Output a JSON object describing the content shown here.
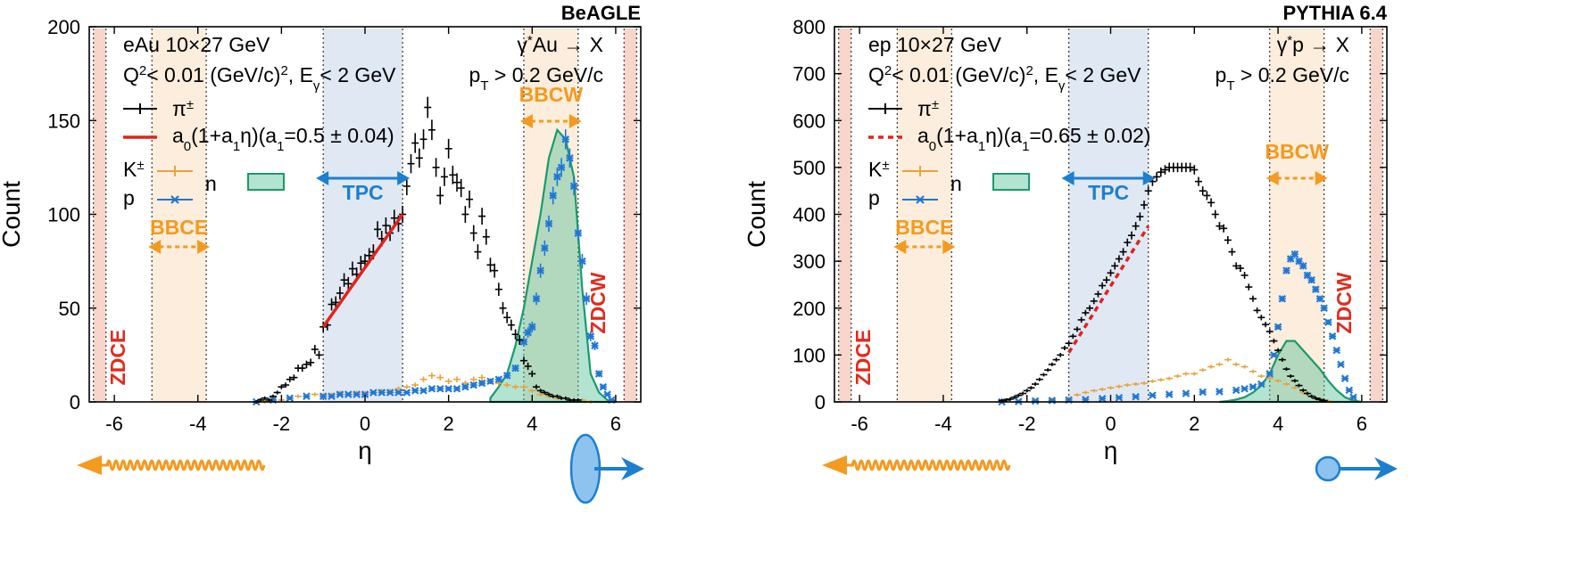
{
  "colors": {
    "pion": "#000000",
    "fit": "#e2231a",
    "kaon": "#e8a33a",
    "proton": "#1f77d4",
    "neutron_fill": "#56c29a",
    "neutron_line": "#1b9a6c",
    "tpc_band": "#dde5f3",
    "bbc_band": "#fdebd8",
    "zdc_band": "#f7d0c4",
    "orange": "#f39a1f",
    "blue": "#1c7fd0",
    "red": "#e12b1d"
  },
  "chart_data": [
    {
      "type": "scatter",
      "generator": "BeAGLE",
      "xlabel": "η",
      "ylabel": "Count",
      "xlim": [
        -6.6,
        6.6
      ],
      "ylim": [
        0,
        200
      ],
      "xticks": [
        "-6",
        "-4",
        "-2",
        "0",
        "2",
        "4",
        "6"
      ],
      "yticks": [
        "0",
        "50",
        "100",
        "150",
        "200"
      ],
      "annotations": {
        "system": "eAu 10×27 GeV",
        "q2": "Q²< 0.01 (GeV/c)², Eγ< 2 GeV",
        "process": "γ*Au → X",
        "pt_cut": "pT > 0.2 GeV/c"
      },
      "legend": {
        "pion": "π±",
        "fit": "a0(1+a1η)(a1=0.5 ± 0.04)",
        "kaon": "K±",
        "proton": "p",
        "neutron": "n"
      },
      "fit": {
        "a1": 0.5,
        "a1_err": 0.04,
        "x_range": [
          -1.0,
          0.9
        ],
        "y_range": [
          40,
          100
        ],
        "dashed": false
      },
      "detectors": {
        "zdce": {
          "label": "ZDCE",
          "range": [
            -6.5,
            -6.2
          ]
        },
        "bbce": {
          "label": "BBCE",
          "range": [
            -5.1,
            -3.8
          ]
        },
        "tpc": {
          "label": "TPC",
          "range": [
            -1.0,
            0.9
          ]
        },
        "bbcw": {
          "label": "BBCW",
          "range": [
            3.8,
            5.1
          ]
        },
        "zdcw": {
          "label": "ZDCW",
          "range": [
            6.2,
            6.5
          ]
        }
      },
      "beam_icons": {
        "left": "photon-wave-arrow",
        "right": "ellipsoid-nucleus-arrow",
        "right_size": "large"
      },
      "series": [
        {
          "name": "π±",
          "x": [
            -2.6,
            -2.5,
            -2.4,
            -2.3,
            -2.2,
            -2.1,
            -2.0,
            -1.9,
            -1.8,
            -1.7,
            -1.6,
            -1.5,
            -1.4,
            -1.3,
            -1.2,
            -1.1,
            -1.0,
            -0.9,
            -0.8,
            -0.7,
            -0.6,
            -0.5,
            -0.4,
            -0.3,
            -0.2,
            -0.1,
            0.0,
            0.1,
            0.2,
            0.3,
            0.4,
            0.5,
            0.6,
            0.7,
            0.8,
            0.9,
            1.0,
            1.1,
            1.2,
            1.3,
            1.4,
            1.5,
            1.6,
            1.7,
            1.8,
            1.9,
            2.0,
            2.1,
            2.2,
            2.3,
            2.4,
            2.5,
            2.6,
            2.7,
            2.8,
            2.9,
            3.0,
            3.1,
            3.2,
            3.3,
            3.4,
            3.5,
            3.6,
            3.7,
            3.8,
            3.9,
            4.0,
            4.1,
            4.2,
            4.3,
            4.4,
            4.5,
            4.6,
            4.7,
            4.8,
            4.9,
            5.0,
            5.1
          ],
          "y": [
            0,
            1,
            2,
            1,
            3,
            5,
            8,
            9,
            12,
            13,
            18,
            18,
            20,
            21,
            28,
            25,
            40,
            41,
            52,
            53,
            58,
            65,
            63,
            71,
            68,
            74,
            75,
            78,
            80,
            92,
            87,
            94,
            90,
            98,
            95,
            100,
            115,
            127,
            138,
            130,
            140,
            157,
            145,
            125,
            110,
            120,
            135,
            121,
            117,
            114,
            100,
            108,
            90,
            80,
            99,
            88,
            73,
            70,
            60,
            50,
            45,
            41,
            36,
            33,
            22,
            19,
            15,
            8,
            6,
            5,
            4,
            3,
            3,
            2,
            2,
            1,
            1,
            1
          ]
        },
        {
          "name": "K±",
          "x": [
            -2.4,
            -2.2,
            -2.0,
            -1.8,
            -1.6,
            -1.4,
            -1.2,
            -1.0,
            -0.8,
            -0.6,
            -0.4,
            -0.2,
            0.0,
            0.2,
            0.4,
            0.6,
            0.8,
            1.0,
            1.2,
            1.4,
            1.6,
            1.8,
            2.0,
            2.2,
            2.4,
            2.6,
            2.8,
            3.0,
            3.2,
            3.4,
            3.6,
            3.8,
            4.0,
            4.2,
            4.4,
            4.6,
            4.8,
            5.0,
            5.2,
            5.4
          ],
          "y": [
            0,
            1,
            1,
            2,
            3,
            3,
            4,
            4,
            4,
            5,
            4,
            5,
            5,
            5,
            6,
            6,
            7,
            8,
            9,
            12,
            14,
            13,
            11,
            12,
            10,
            12,
            13,
            11,
            10,
            9,
            8,
            8,
            6,
            4,
            3,
            2,
            2,
            1,
            1,
            0
          ]
        },
        {
          "name": "p",
          "x": [
            -2.6,
            -2.2,
            -1.8,
            -1.4,
            -1.0,
            -0.8,
            -0.6,
            -0.4,
            -0.2,
            0.0,
            0.2,
            0.4,
            0.6,
            0.8,
            1.0,
            1.2,
            1.4,
            1.6,
            1.8,
            2.0,
            2.2,
            2.4,
            2.6,
            2.8,
            3.0,
            3.2,
            3.4,
            3.6,
            3.8,
            3.9,
            4.0,
            4.1,
            4.2,
            4.3,
            4.4,
            4.5,
            4.6,
            4.7,
            4.8,
            4.9,
            5.0,
            5.1,
            5.2,
            5.3,
            5.4,
            5.5,
            5.6,
            5.7,
            5.8,
            5.9
          ],
          "y": [
            0,
            1,
            2,
            3,
            3,
            3,
            4,
            4,
            4,
            4,
            5,
            5,
            5,
            5,
            5,
            6,
            6,
            7,
            7,
            7,
            7,
            8,
            9,
            10,
            11,
            12,
            14,
            18,
            32,
            37,
            40,
            55,
            70,
            82,
            95,
            110,
            120,
            125,
            140,
            130,
            115,
            90,
            75,
            55,
            35,
            30,
            15,
            8,
            4,
            1
          ]
        },
        {
          "name": "n",
          "x": [
            3.0,
            3.2,
            3.4,
            3.6,
            3.8,
            4.0,
            4.2,
            4.4,
            4.6,
            4.8,
            5.0,
            5.2,
            5.4,
            5.6,
            5.8,
            6.0
          ],
          "y": [
            2,
            8,
            15,
            30,
            50,
            75,
            100,
            130,
            145,
            140,
            120,
            60,
            15,
            5,
            1,
            0
          ]
        }
      ]
    },
    {
      "type": "scatter",
      "generator": "PYTHIA 6.4",
      "xlabel": "η",
      "ylabel": "Count",
      "xlim": [
        -6.6,
        6.6
      ],
      "ylim": [
        0,
        800
      ],
      "xticks": [
        "-6",
        "-4",
        "-2",
        "0",
        "2",
        "4",
        "6"
      ],
      "yticks": [
        "0",
        "100",
        "200",
        "300",
        "400",
        "500",
        "600",
        "700",
        "800"
      ],
      "annotations": {
        "system": "ep 10×27 GeV",
        "q2": "Q²< 0.01 (GeV/c)², Eγ< 2 GeV",
        "process": "γ*p → X",
        "pt_cut": "pT > 0.2 GeV/c"
      },
      "legend": {
        "pion": "π±",
        "fit": "a0(1+a1η)(a1=0.65 ± 0.02)",
        "kaon": "K±",
        "proton": "p",
        "neutron": "n"
      },
      "fit": {
        "a1": 0.65,
        "a1_err": 0.02,
        "x_range": [
          -1.0,
          0.9
        ],
        "y_range": [
          105,
          375
        ],
        "dashed": true
      },
      "detectors": {
        "zdce": {
          "label": "ZDCE",
          "range": [
            -6.5,
            -6.2
          ]
        },
        "bbce": {
          "label": "BBCE",
          "range": [
            -5.1,
            -3.8
          ]
        },
        "tpc": {
          "label": "TPC",
          "range": [
            -1.0,
            0.9
          ]
        },
        "bbcw": {
          "label": "BBCW",
          "range": [
            3.8,
            5.1
          ]
        },
        "zdcw": {
          "label": "ZDCW",
          "range": [
            6.2,
            6.5
          ]
        }
      },
      "beam_icons": {
        "left": "photon-wave-arrow",
        "right": "proton-arrow",
        "right_size": "small"
      },
      "series": [
        {
          "name": "π±",
          "x": [
            -2.6,
            -2.5,
            -2.4,
            -2.3,
            -2.2,
            -2.1,
            -2.0,
            -1.9,
            -1.8,
            -1.7,
            -1.6,
            -1.5,
            -1.4,
            -1.3,
            -1.2,
            -1.1,
            -1.0,
            -0.9,
            -0.8,
            -0.7,
            -0.6,
            -0.5,
            -0.4,
            -0.3,
            -0.2,
            -0.1,
            0.0,
            0.1,
            0.2,
            0.3,
            0.4,
            0.5,
            0.6,
            0.7,
            0.8,
            0.9,
            1.0,
            1.1,
            1.2,
            1.3,
            1.4,
            1.5,
            1.6,
            1.7,
            1.8,
            1.9,
            2.0,
            2.1,
            2.2,
            2.3,
            2.4,
            2.5,
            2.6,
            2.7,
            2.8,
            2.9,
            3.0,
            3.1,
            3.2,
            3.3,
            3.4,
            3.5,
            3.6,
            3.7,
            3.8,
            3.9,
            4.0,
            4.1,
            4.2,
            4.3,
            4.4,
            4.5,
            4.6,
            4.7,
            4.8,
            4.9,
            5.0,
            5.1
          ],
          "y": [
            3,
            4,
            6,
            10,
            14,
            18,
            24,
            30,
            38,
            48,
            58,
            68,
            80,
            90,
            100,
            115,
            125,
            140,
            155,
            175,
            190,
            200,
            215,
            230,
            248,
            260,
            275,
            290,
            305,
            320,
            340,
            355,
            375,
            395,
            420,
            450,
            470,
            480,
            490,
            495,
            500,
            500,
            500,
            500,
            500,
            500,
            495,
            470,
            450,
            440,
            425,
            400,
            375,
            370,
            345,
            320,
            290,
            285,
            270,
            245,
            220,
            195,
            180,
            165,
            150,
            130,
            110,
            90,
            70,
            55,
            45,
            35,
            25,
            18,
            12,
            8,
            5,
            3
          ]
        },
        {
          "name": "K±",
          "x": [
            -2.2,
            -1.8,
            -1.4,
            -1.0,
            -0.8,
            -0.6,
            -0.4,
            -0.2,
            0.0,
            0.2,
            0.4,
            0.6,
            0.8,
            1.0,
            1.2,
            1.4,
            1.6,
            1.8,
            2.0,
            2.2,
            2.4,
            2.6,
            2.8,
            3.0,
            3.2,
            3.4,
            3.6,
            3.8,
            4.0,
            4.2,
            4.4,
            4.6,
            4.8,
            5.0,
            5.2
          ],
          "y": [
            1,
            3,
            5,
            8,
            15,
            20,
            24,
            27,
            30,
            33,
            36,
            38,
            40,
            44,
            47,
            50,
            55,
            60,
            60,
            68,
            75,
            80,
            90,
            80,
            75,
            65,
            55,
            50,
            45,
            38,
            30,
            20,
            12,
            5,
            2
          ]
        },
        {
          "name": "p",
          "x": [
            -2.6,
            -2.2,
            -1.8,
            -1.4,
            -1.0,
            -0.6,
            -0.2,
            0.2,
            0.6,
            1.0,
            1.4,
            1.8,
            2.2,
            2.6,
            3.0,
            3.2,
            3.4,
            3.6,
            3.8,
            3.9,
            4.0,
            4.1,
            4.2,
            4.3,
            4.4,
            4.5,
            4.6,
            4.7,
            4.8,
            4.9,
            5.0,
            5.1,
            5.2,
            5.3,
            5.4,
            5.5,
            5.6,
            5.7,
            5.8
          ],
          "y": [
            0,
            1,
            2,
            3,
            4,
            5,
            7,
            9,
            11,
            14,
            16,
            18,
            21,
            22,
            25,
            28,
            32,
            38,
            60,
            100,
            160,
            220,
            280,
            305,
            315,
            300,
            290,
            270,
            260,
            240,
            220,
            200,
            170,
            140,
            110,
            80,
            50,
            25,
            10
          ]
        },
        {
          "name": "n",
          "x": [
            2.6,
            2.8,
            3.0,
            3.2,
            3.4,
            3.6,
            3.8,
            4.0,
            4.2,
            4.4,
            4.6,
            4.8,
            5.0,
            5.2,
            5.4,
            5.6,
            5.8,
            6.0
          ],
          "y": [
            0,
            2,
            5,
            10,
            20,
            35,
            60,
            100,
            130,
            130,
            110,
            90,
            70,
            45,
            25,
            10,
            3,
            0
          ]
        }
      ]
    }
  ]
}
